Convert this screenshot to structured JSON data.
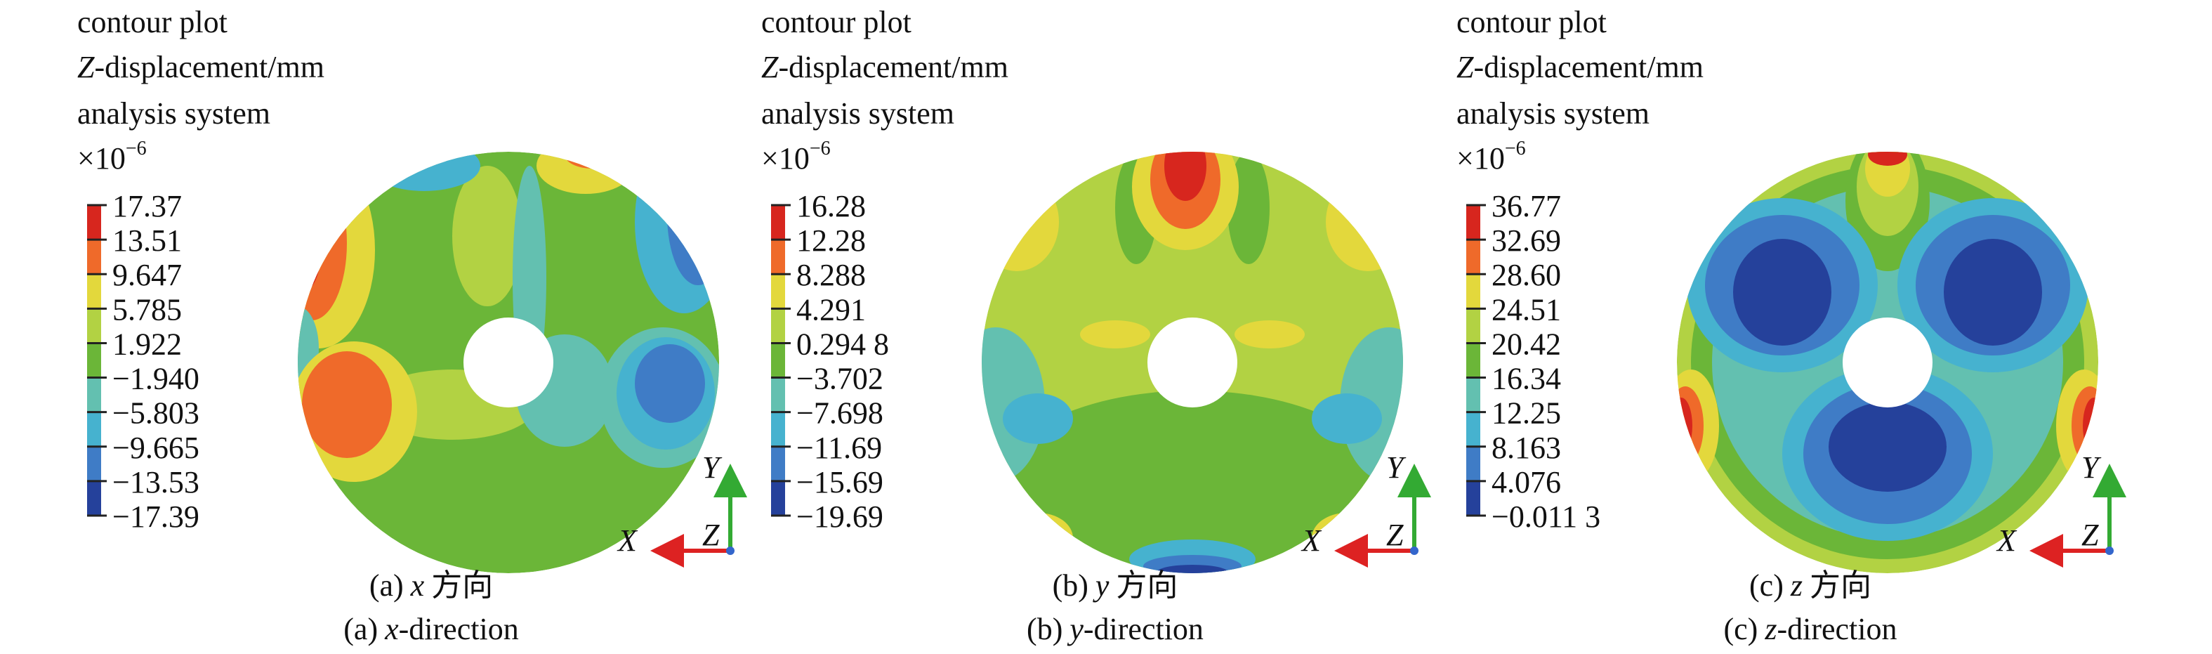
{
  "panels": [
    {
      "title": "contour plot",
      "quantity": {
        "symbol": "Z",
        "text": "-displacement/mm"
      },
      "system": "analysis system",
      "multiplier": {
        "base": "×10",
        "exponent": "−6"
      },
      "legend": [
        "17.37",
        "13.51",
        "9.647",
        "5.785",
        "1.922",
        "−1.940",
        "−5.803",
        "−9.665",
        "−13.53",
        "−17.39"
      ],
      "axes": {
        "y": "Y",
        "x": "X",
        "z": "Z"
      },
      "caption_cn": {
        "label": "(a)",
        "var": "x",
        "text": "方向"
      },
      "caption_en": {
        "label": "(a)",
        "var": "x",
        "text": "-direction"
      }
    },
    {
      "title": "contour plot",
      "quantity": {
        "symbol": "Z",
        "text": "-displacement/mm"
      },
      "system": "analysis system",
      "multiplier": {
        "base": "×10",
        "exponent": "−6"
      },
      "legend": [
        "16.28",
        "12.28",
        "8.288",
        "4.291",
        "0.294 8",
        "−3.702",
        "−7.698",
        "−11.69",
        "−15.69",
        "−19.69"
      ],
      "axes": {
        "y": "Y",
        "x": "X",
        "z": "Z"
      },
      "caption_cn": {
        "label": "(b)",
        "var": "y",
        "text": "方向"
      },
      "caption_en": {
        "label": "(b)",
        "var": "y",
        "text": "-direction"
      }
    },
    {
      "title": "contour plot",
      "quantity": {
        "symbol": "Z",
        "text": "-displacement/mm"
      },
      "system": "analysis system",
      "multiplier": {
        "base": "×10",
        "exponent": "−6"
      },
      "legend": [
        "36.77",
        "32.69",
        "28.60",
        "24.51",
        "20.42",
        "16.34",
        "12.25",
        "8.163",
        "4.076",
        "−0.011 3"
      ],
      "axes": {
        "y": "Y",
        "x": "X",
        "z": "Z"
      },
      "caption_cn": {
        "label": "(c)",
        "var": "z",
        "text": "方向"
      },
      "caption_en": {
        "label": "(c)",
        "var": "z",
        "text": "-direction"
      }
    }
  ]
}
